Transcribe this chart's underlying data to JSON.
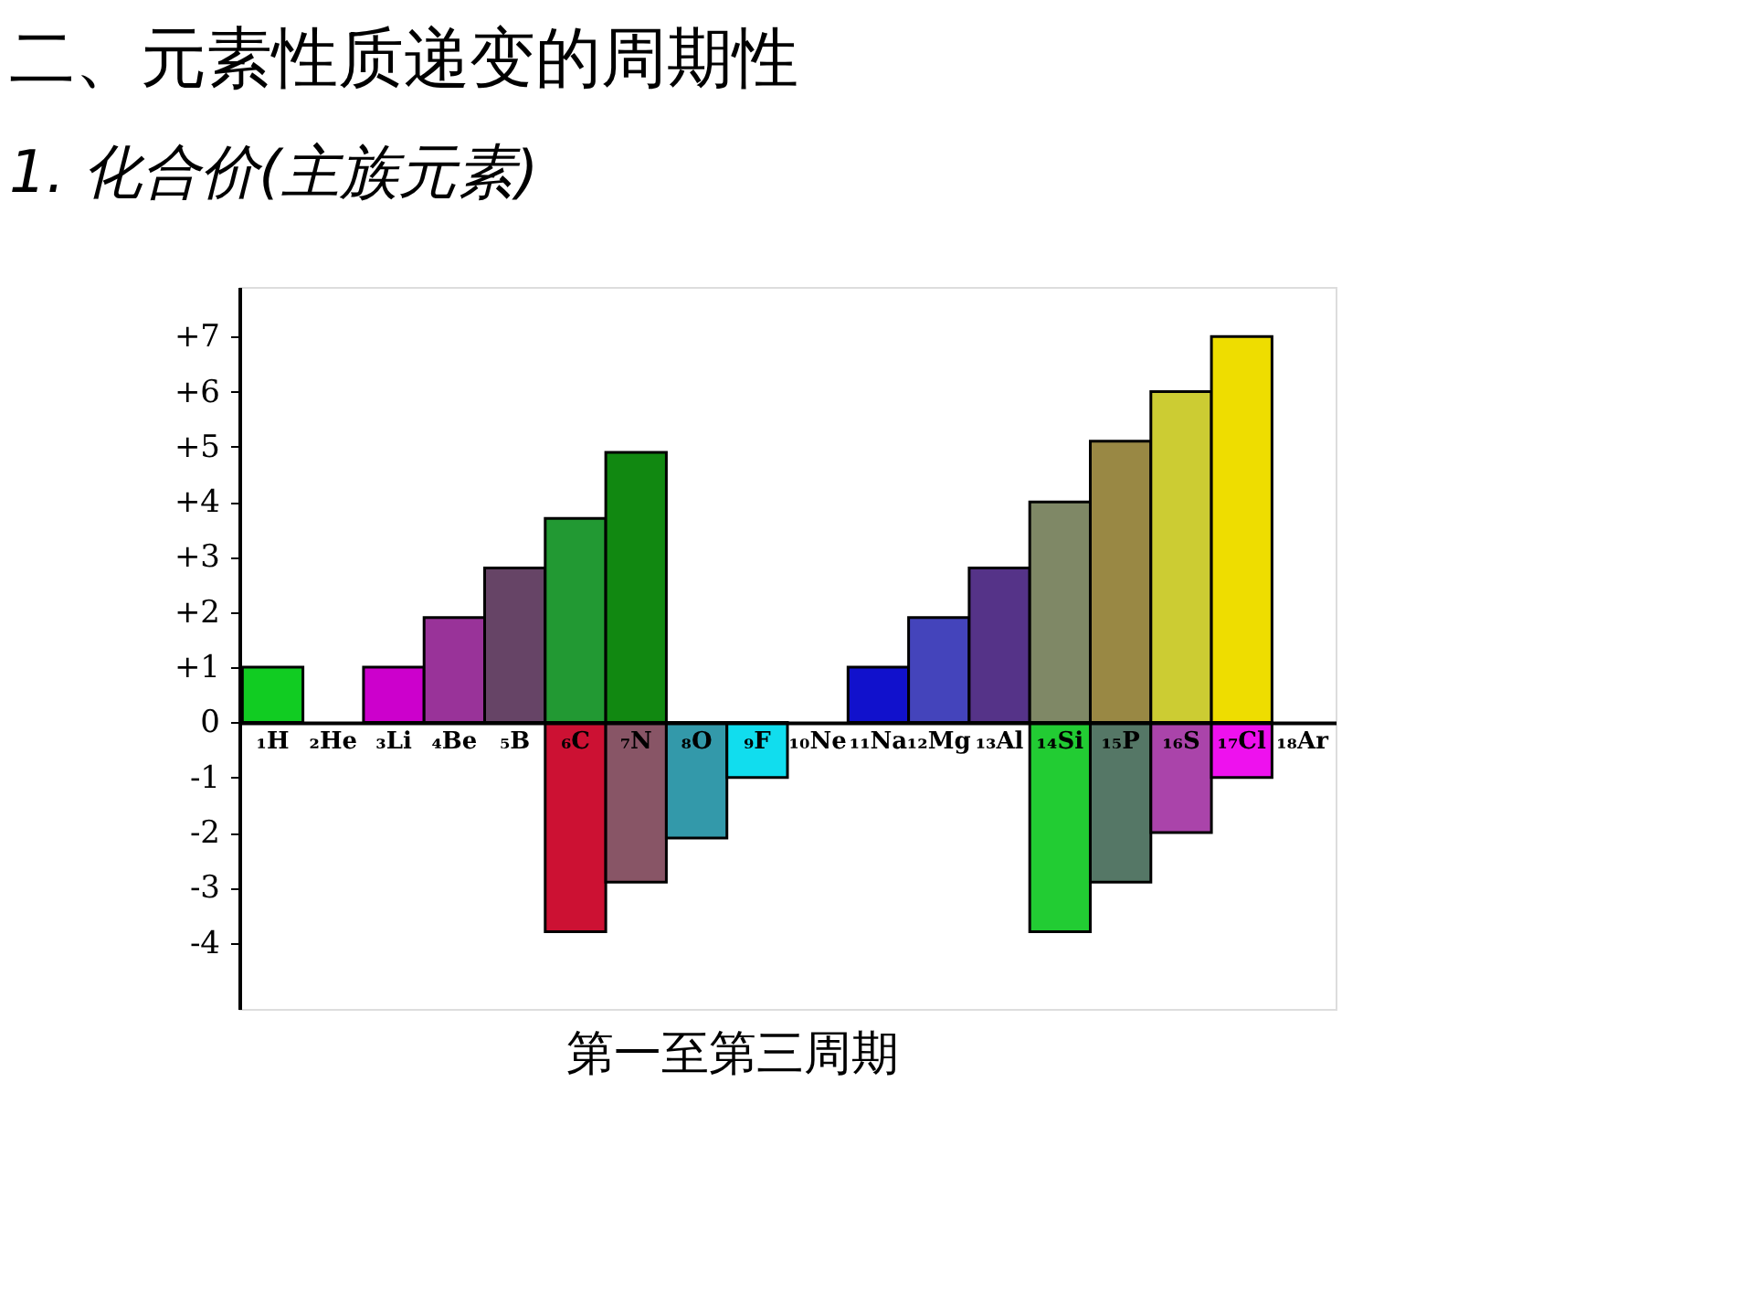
{
  "chart_data": {
    "type": "bar",
    "title": "二、元素性质递变的周期性",
    "subtitle": "1. 化合价(主族元素)",
    "xlabel": "第一至第三周期",
    "categories": [
      "₁H",
      "₂He",
      "₃Li",
      "₄Be",
      "₅B",
      "₆C",
      "₇N",
      "₈O",
      "₉F",
      "₁₀Ne",
      "₁₁Na",
      "₁₂Mg",
      "₁₃Al",
      "₁₄Si",
      "₁₅P",
      "₁₆S",
      "₁₇Cl",
      "₁₈Ar"
    ],
    "series": [
      {
        "colors": [
          "#11cc22",
          null,
          "#cc00cc",
          "#993399",
          "#664466",
          "#229933",
          "#118811",
          null,
          null,
          null,
          "#1111cc",
          "#4444bb",
          "#553388",
          "#7f8866",
          "#998844",
          "#cccc33",
          "#eedd00",
          null
        ],
        "values": [
          1,
          null,
          1,
          1.9,
          2.8,
          3.7,
          4.9,
          null,
          null,
          null,
          1,
          1.9,
          2.8,
          4,
          5.1,
          6,
          7,
          null
        ]
      },
      {
        "colors": [
          null,
          null,
          null,
          null,
          null,
          "#cc1133",
          "#885566",
          "#3399aa",
          "#11ddee",
          null,
          null,
          null,
          null,
          "#22cc33",
          "#557766",
          "#aa44aa",
          "#ee11ee",
          null
        ],
        "values": [
          null,
          null,
          null,
          null,
          null,
          -3.8,
          -2.9,
          -2.1,
          -1,
          null,
          null,
          null,
          null,
          -3.8,
          -2.9,
          -2,
          -1,
          null
        ]
      }
    ],
    "ylim": [
      -5.2,
      7.9
    ],
    "yticks": [
      {
        "value": 7,
        "label": "+7"
      },
      {
        "value": 6,
        "label": "+6"
      },
      {
        "value": 5,
        "label": "+5"
      },
      {
        "value": 4,
        "label": "+4"
      },
      {
        "value": 3,
        "label": "+3"
      },
      {
        "value": 2,
        "label": "+2"
      },
      {
        "value": 1,
        "label": "+1"
      },
      0,
      -1,
      -2,
      -3,
      -4
    ],
    "grid": false,
    "legend": false
  }
}
